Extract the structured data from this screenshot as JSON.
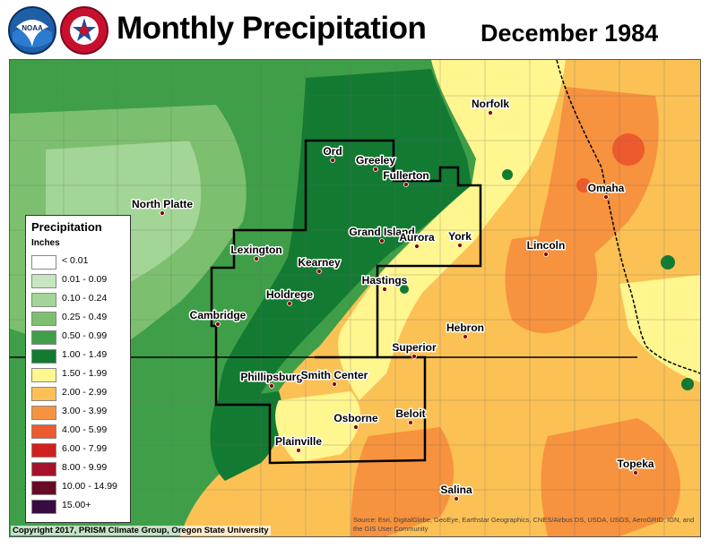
{
  "header": {
    "title": "Monthly Precipitation",
    "subtitle": "December 1984",
    "logos": [
      "noaa-logo",
      "national-weather-service-logo"
    ]
  },
  "legend": {
    "title": "Precipitation",
    "units": "Inches",
    "classes": [
      {
        "label": "< 0.01",
        "color": "#ffffff"
      },
      {
        "label": "0.01 - 0.09",
        "color": "#c8e6c0"
      },
      {
        "label": "0.10 - 0.24",
        "color": "#a3d596"
      },
      {
        "label": "0.25 - 0.49",
        "color": "#7cc06f"
      },
      {
        "label": "0.50 - 0.99",
        "color": "#3f9f48"
      },
      {
        "label": "1.00 - 1.49",
        "color": "#137a32"
      },
      {
        "label": "1.50 - 1.99",
        "color": "#fff68f"
      },
      {
        "label": "2.00 - 2.99",
        "color": "#fbc155"
      },
      {
        "label": "3.00 - 3.99",
        "color": "#f7923e"
      },
      {
        "label": "4.00 - 5.99",
        "color": "#ed5a2d"
      },
      {
        "label": "6.00 - 7.99",
        "color": "#d0211e"
      },
      {
        "label": "8.00 - 9.99",
        "color": "#a5122a"
      },
      {
        "label": "10.00 - 14.99",
        "color": "#6a0b26"
      },
      {
        "label": "15.00+",
        "color": "#3a0a42"
      }
    ]
  },
  "cities": [
    {
      "name": "Norfolk"
    },
    {
      "name": "Ord"
    },
    {
      "name": "Greeley"
    },
    {
      "name": "Fullerton"
    },
    {
      "name": "North Platte"
    },
    {
      "name": "Omaha"
    },
    {
      "name": "Grand Island"
    },
    {
      "name": "Aurora"
    },
    {
      "name": "York"
    },
    {
      "name": "Lexington"
    },
    {
      "name": "Lincoln"
    },
    {
      "name": "Kearney"
    },
    {
      "name": "Hastings"
    },
    {
      "name": "Holdrege"
    },
    {
      "name": "Cambridge"
    },
    {
      "name": "Hebron"
    },
    {
      "name": "Superior"
    },
    {
      "name": "Phillipsburg"
    },
    {
      "name": "Smith Center"
    },
    {
      "name": "Osborne"
    },
    {
      "name": "Beloit"
    },
    {
      "name": "Plainville"
    },
    {
      "name": "Topeka"
    },
    {
      "name": "Salina"
    }
  ],
  "footer": {
    "copyright": "Copyright 2017, PRISM Climate Group, Oregon State University",
    "attribution": "Source: Esri, DigitalGlobe, GeoEye, Earthstar Geographics, CNES/Airbus DS, USDA, USGS, AeroGRID, IGN, and the GIS User Community"
  }
}
